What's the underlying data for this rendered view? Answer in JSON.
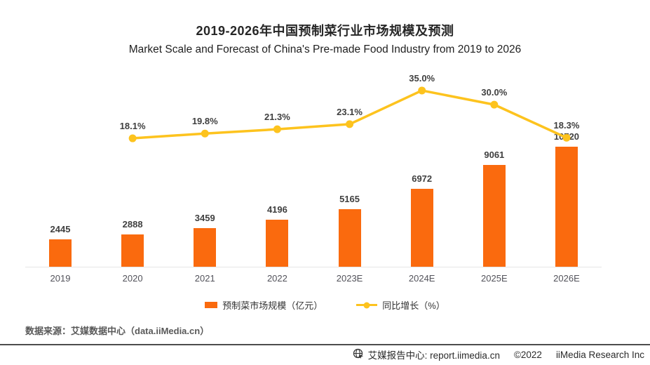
{
  "page": {
    "title": "2019-2026年中国预制菜行业市场规模及预测",
    "subtitle": "Market Scale and Forecast of China's Pre-made Food Industry from 2019 to 2026"
  },
  "chart_data": {
    "type": "bar+line",
    "title": "2019-2026年中国预制菜行业市场规模及预测",
    "subtitle": "Market Scale and Forecast of China's Pre-made Food Industry from 2019 to 2026",
    "categories": [
      "2019",
      "2020",
      "2021",
      "2022",
      "2023E",
      "2024E",
      "2025E",
      "2026E"
    ],
    "series": [
      {
        "name": "预制菜市场规模（亿元）",
        "type": "bar",
        "color": "#FA6A0E",
        "values": [
          2445,
          2888,
          3459,
          4196,
          5165,
          6972,
          9061,
          10720
        ]
      },
      {
        "name": "同比增长（%）",
        "type": "line",
        "color": "#FDC31E",
        "values": [
          null,
          18.1,
          19.8,
          21.3,
          23.1,
          35.0,
          30.0,
          18.3
        ],
        "point_labels": [
          null,
          "18.1%",
          "19.8%",
          "21.3%",
          "23.1%",
          "35.0%",
          "30.0%",
          "18.3%"
        ]
      }
    ],
    "ylabel": "",
    "xlabel": "",
    "grid": false,
    "legend_position": "bottom",
    "value_labels_shown": true
  },
  "source": {
    "text": "数据来源：艾媒数据中心（data.iiMedia.cn）"
  },
  "footer": {
    "brand": "艾媒报告中心: report.iimedia.cn",
    "copyright": "©2022",
    "company": "iiMedia Research Inc",
    "icon": "globe-with-cursor-icon",
    "icon_color": "#333333"
  }
}
